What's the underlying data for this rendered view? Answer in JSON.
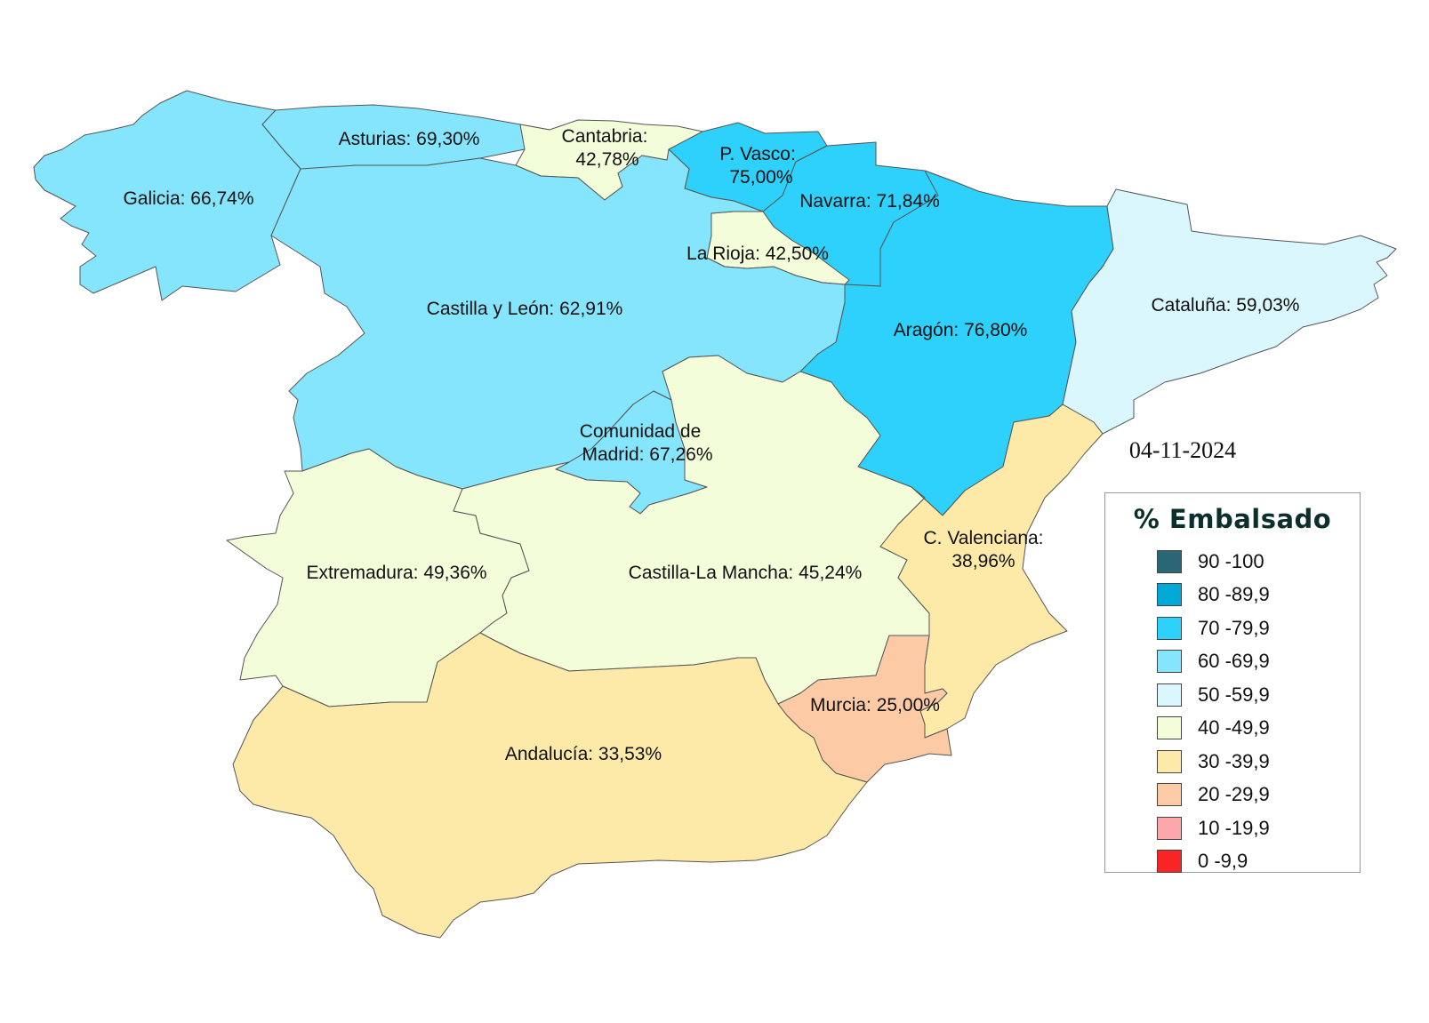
{
  "date": "04-11-2024",
  "legend": {
    "title": "% Embalsado",
    "items": [
      {
        "label": "90 -100",
        "color": "#2a6676"
      },
      {
        "label": "80 -89,9",
        "color": "#00a8d8"
      },
      {
        "label": "70 -79,9",
        "color": "#2ed1fb"
      },
      {
        "label": "60 -69,9",
        "color": "#84e5fc"
      },
      {
        "label": "50 -59,9",
        "color": "#d9f7fd"
      },
      {
        "label": "40 -49,9",
        "color": "#f4fdd9"
      },
      {
        "label": "30 -39,9",
        "color": "#fde9a8"
      },
      {
        "label": "20 -29,9",
        "color": "#fccaa5"
      },
      {
        "label": "10 -19,9",
        "color": "#fca8aa"
      },
      {
        "label": "0 -9,9",
        "color": "#f92424"
      }
    ]
  },
  "regions": {
    "galicia": {
      "name": "Galicia",
      "value": "66,74%",
      "color": "#84e5fc"
    },
    "asturias": {
      "name": "Asturias",
      "value": "69,30%",
      "color": "#84e5fc"
    },
    "cantabria": {
      "name": "Cantabria",
      "value": "42,78%",
      "color": "#f4fdd9"
    },
    "pvasco": {
      "name": "P. Vasco",
      "value": "75,00%",
      "color": "#2ed1fb"
    },
    "navarra": {
      "name": "Navarra",
      "value": "71,84%",
      "color": "#2ed1fb"
    },
    "larioja": {
      "name": "La Rioja",
      "value": "42,50%",
      "color": "#f4fdd9"
    },
    "castillayleon": {
      "name": "Castilla y León",
      "value": "62,91%",
      "color": "#84e5fc"
    },
    "aragon": {
      "name": "Aragón",
      "value": "76,80%",
      "color": "#2ed1fb"
    },
    "cataluna": {
      "name": "Cataluña",
      "value": "59,03%",
      "color": "#d9f7fd"
    },
    "madrid": {
      "name": "Comunidad de Madrid",
      "value": "67,26%",
      "color": "#84e5fc"
    },
    "extremadura": {
      "name": "Extremadura",
      "value": "49,36%",
      "color": "#f4fdd9"
    },
    "castillalamancha": {
      "name": "Castilla-La Mancha",
      "value": "45,24%",
      "color": "#f4fdd9"
    },
    "valenciana": {
      "name": "C. Valenciana",
      "value": "38,96%",
      "color": "#fde9a8"
    },
    "murcia": {
      "name": "Murcia",
      "value": "25,00%",
      "color": "#fccaa5"
    },
    "andalucia": {
      "name": "Andalucía",
      "value": "33,53%",
      "color": "#fde9a8"
    }
  },
  "labels": {
    "galicia": "Galicia: 66,74%",
    "asturias": "Asturias: 69,30%",
    "cantabria_1": "Cantabria:",
    "cantabria_2": "42,78%",
    "pvasco_1": "P. Vasco:",
    "pvasco_2": "75,00%",
    "navarra": "Navarra: 71,84%",
    "larioja": "La Rioja: 42,50%",
    "castillayleon": "Castilla y León: 62,91%",
    "aragon": "Aragón: 76,80%",
    "cataluna": "Cataluña: 59,03%",
    "madrid_1": "Comunidad de",
    "madrid_2": "Madrid: 67,26%",
    "extremadura": "Extremadura: 49,36%",
    "castillalamancha": "Castilla-La Mancha: 45,24%",
    "valenciana_1": "C. Valenciana:",
    "valenciana_2": "38,96%",
    "murcia": "Murcia: 25,00%",
    "andalucia": "Andalucía: 33,53%"
  }
}
